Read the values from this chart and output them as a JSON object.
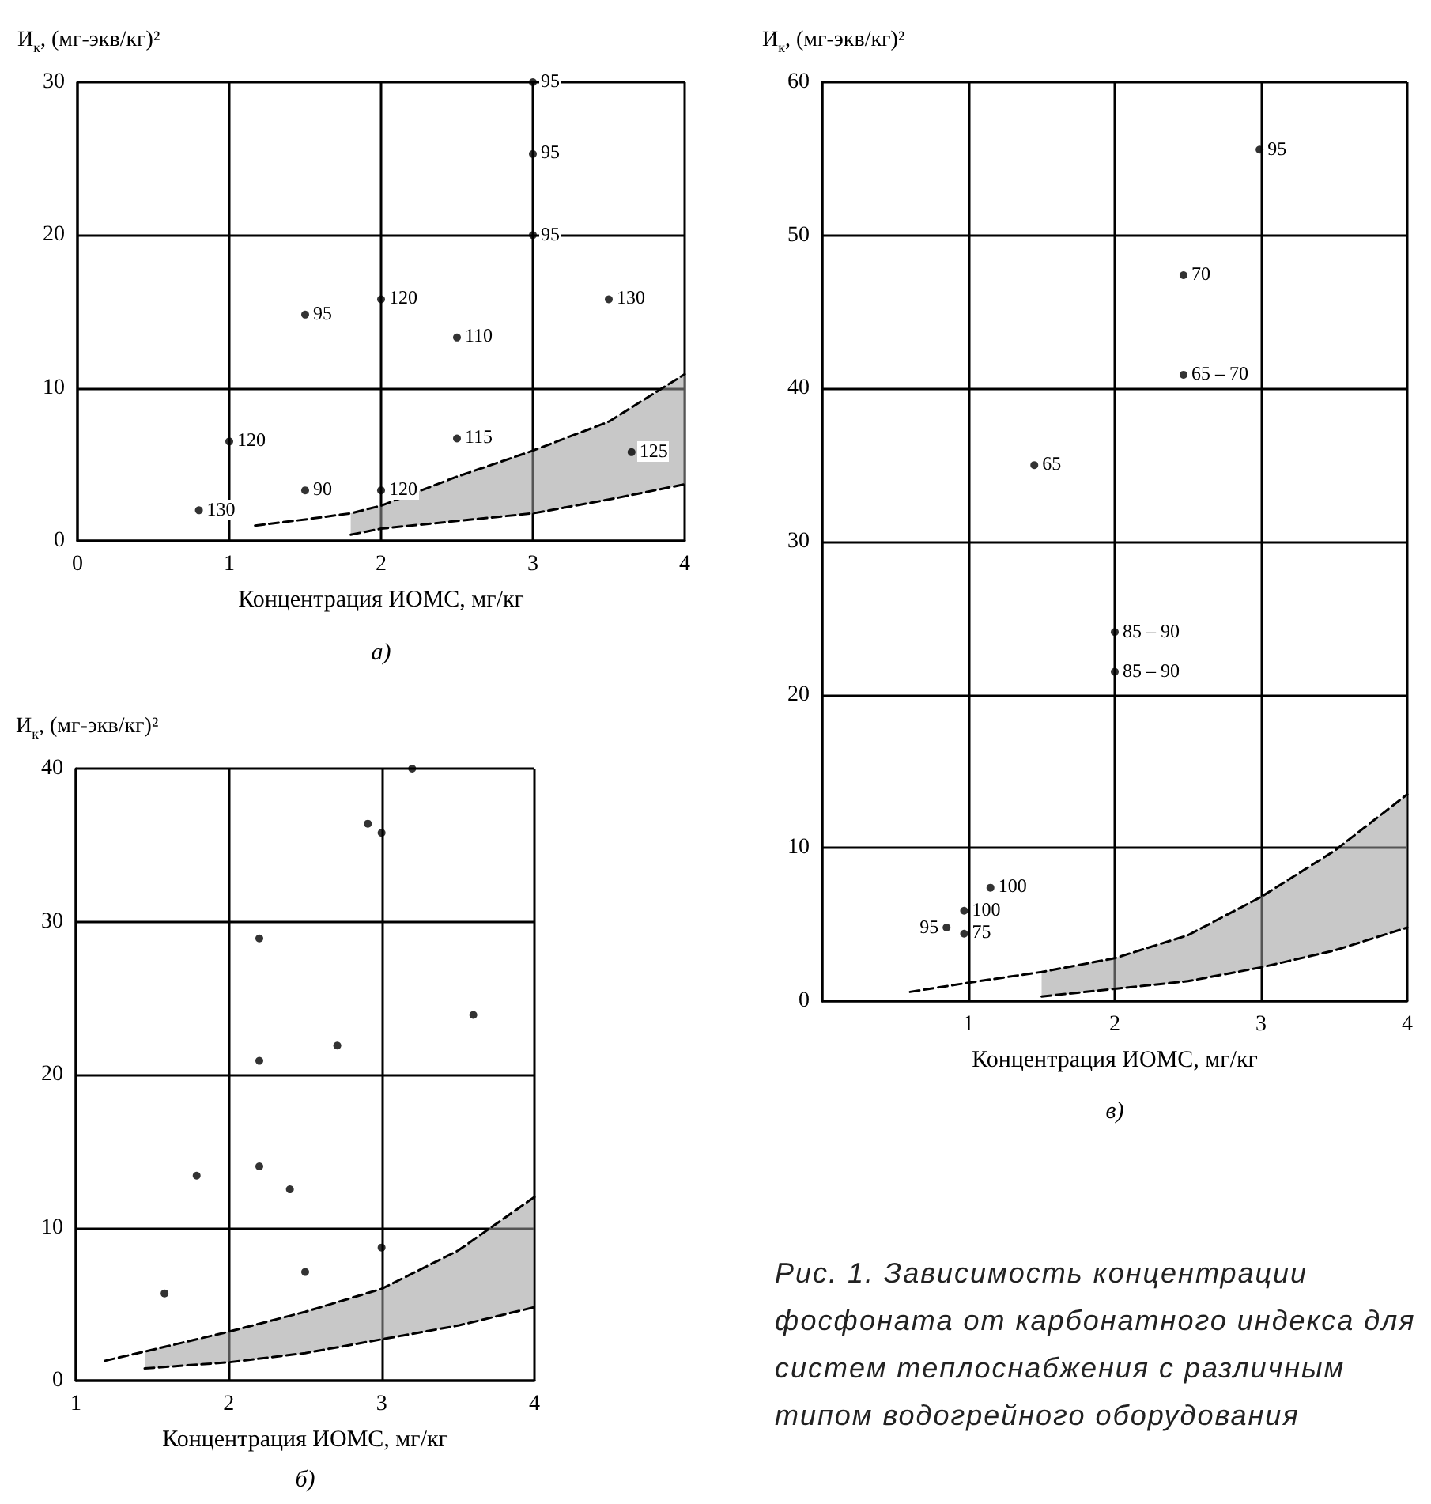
{
  "chart_data": [
    {
      "type": "scatter",
      "ylabel": "И$_{к}$, (мг-экв/кг)²",
      "xlabel": "Концентрация ИОМС, мг/кг",
      "annotations": [
        "а)",
        {
          "text": "130",
          "x": 0.8,
          "y": 2
        },
        {
          "text": "120",
          "x": 1,
          "y": 6.5
        },
        {
          "text": "90",
          "x": 1.5,
          "y": 3.3
        },
        {
          "text": "95",
          "x": 1.5,
          "y": 14.8
        },
        {
          "text": "120",
          "x": 2,
          "y": 3.3
        },
        {
          "text": "120",
          "x": 2,
          "y": 15.8
        },
        {
          "text": "110",
          "x": 2.5,
          "y": 13.3
        },
        {
          "text": "115",
          "x": 2.5,
          "y": 6.7
        },
        {
          "text": "95",
          "x": 3,
          "y": 30
        },
        {
          "text": "95",
          "x": 3,
          "y": 25.3
        },
        {
          "text": "95",
          "x": 3,
          "y": 20
        },
        {
          "text": "130",
          "x": 3.5,
          "y": 15.8
        },
        {
          "text": "125",
          "x": 3.65,
          "y": 5.8
        }
      ],
      "xlim": [
        0,
        4
      ],
      "xticks": [
        0,
        1,
        2,
        3,
        4
      ],
      "ylim": [
        0,
        30
      ],
      "yticks": [
        0,
        10,
        20,
        30
      ],
      "grid": true,
      "marker": "circle",
      "series": [
        {
          "color": "#000000",
          "x": [
            0.8,
            1,
            1.5,
            1.5,
            2,
            2,
            2.5,
            2.5,
            3,
            3,
            3,
            3.5,
            3.65
          ],
          "values": [
            2,
            6.5,
            3.3,
            14.8,
            3.3,
            15.8,
            13.3,
            6.7,
            30,
            25.3,
            20,
            15.8,
            5.8
          ]
        },
        {
          "type": "line",
          "color": "#000000",
          "line_style": "dashed",
          "marker": "none",
          "x": [
            1.17,
            1.5,
            1.8,
            2,
            2.5,
            3,
            3.5,
            4
          ],
          "values": [
            1,
            1.4,
            1.8,
            2.3,
            4.2,
            5.9,
            7.8,
            10.9
          ]
        },
        {
          "type": "line",
          "color": "#000000",
          "line_style": "dashed",
          "marker": "none",
          "x": [
            1.8,
            2,
            2.5,
            3,
            3.5,
            4
          ],
          "values": [
            0.4,
            0.8,
            1.3,
            1.8,
            2.7,
            3.7
          ],
          "lower": [
            0.4,
            0.8,
            1.3,
            1.8,
            2.7,
            3.7
          ],
          "upper": [
            1.8,
            2.3,
            4.2,
            5.9,
            7.8,
            10.9
          ]
        }
      ]
    },
    {
      "type": "scatter",
      "ylabel": "И$_{к}$, (мг-экв/кг)²",
      "xlabel": "Концентрация ИОМС, мг/кг",
      "annotations": [
        "б)"
      ],
      "xlim": [
        1,
        4
      ],
      "xticks": [
        1,
        2,
        3,
        4
      ],
      "ylim": [
        0,
        40
      ],
      "yticks": [
        0,
        10,
        20,
        30,
        40
      ],
      "grid": true,
      "marker": "circle",
      "series": [
        {
          "color": "#000000",
          "x": [
            3.2,
            2.91,
            3,
            2.2,
            3.6,
            2.71,
            2.2,
            1.79,
            2.2,
            2.4,
            3,
            2.5,
            1.58
          ],
          "values": [
            40,
            36.4,
            35.8,
            28.9,
            23.9,
            21.9,
            20.9,
            13.4,
            14,
            12.5,
            8.7,
            7.1,
            5.7
          ]
        },
        {
          "type": "line",
          "color": "#000000",
          "line_style": "dashed",
          "marker": "none",
          "x": [
            1.19,
            1.45,
            2,
            2.5,
            3,
            3.5,
            4
          ],
          "values": [
            1.3,
            1.9,
            3.2,
            4.5,
            6,
            8.5,
            12
          ]
        },
        {
          "type": "line",
          "color": "#000000",
          "line_style": "dashed",
          "marker": "none",
          "x": [
            1.45,
            2,
            2.5,
            3,
            3.5,
            4
          ],
          "values": [
            0.8,
            1.2,
            1.8,
            2.7,
            3.6,
            4.8
          ],
          "lower": [
            0.8,
            1.2,
            1.8,
            2.7,
            3.6,
            4.8
          ],
          "upper": [
            1.9,
            3.2,
            4.5,
            6,
            8.5,
            12
          ]
        }
      ]
    },
    {
      "type": "scatter",
      "ylabel": "И$_{к}$, (мг-экв/кг)²",
      "xlabel": "Концентрация ИОМС, мг/кг",
      "annotations": [
        "в)",
        "Рис. 1. Зависимость концентрации фосфоната от карбонатного индекса для систем теплоснабжения с различным типом водогрейного оборудования",
        {
          "text": "95",
          "x": 2.99,
          "y": 55.6
        },
        {
          "text": "70",
          "x": 2.47,
          "y": 47.4
        },
        {
          "text": "65 – 70",
          "x": 2.47,
          "y": 40.9
        },
        {
          "text": "65",
          "x": 1.45,
          "y": 35
        },
        {
          "text": "85 – 90",
          "x": 2,
          "y": 24.1
        },
        {
          "text": "85 – 90",
          "x": 2,
          "y": 21.5
        },
        {
          "text": "100",
          "x": 1.15,
          "y": 7.4
        },
        {
          "text": "100",
          "x": 0.97,
          "y": 5.9
        },
        {
          "text": "75",
          "x": 0.97,
          "y": 4.4
        },
        {
          "text": "95",
          "x": 0.85,
          "y": 4.8
        }
      ],
      "xlim": [
        0,
        4
      ],
      "xticks": [
        {
          "value": 0,
          "label": null
        },
        1,
        2,
        3,
        4
      ],
      "ylim": [
        0,
        60
      ],
      "yticks": [
        0,
        10,
        20,
        30,
        40,
        50,
        60
      ],
      "grid": true,
      "marker": "circle",
      "series": [
        {
          "color": "#000000",
          "x": [
            2.99,
            2.47,
            2.47,
            1.45,
            2,
            2,
            1.15,
            0.97,
            0.97,
            0.85
          ],
          "values": [
            55.6,
            47.4,
            40.9,
            35,
            24.1,
            21.5,
            7.4,
            5.9,
            4.4,
            4.8
          ]
        },
        {
          "type": "line",
          "color": "#000000",
          "line_style": "dashed",
          "marker": "none",
          "x": [
            0.6,
            1,
            1.5,
            2,
            2.5,
            3,
            3.5,
            4
          ],
          "values": [
            0.6,
            1.2,
            1.9,
            2.8,
            4.3,
            6.8,
            9.8,
            13.5
          ]
        },
        {
          "type": "line",
          "color": "#000000",
          "line_style": "dashed",
          "marker": "none",
          "x": [
            1.5,
            2,
            2.5,
            3,
            3.5,
            4
          ],
          "values": [
            0.3,
            0.8,
            1.3,
            2.2,
            3.3,
            4.8
          ],
          "lower": [
            0.3,
            0.8,
            1.3,
            2.2,
            3.3,
            4.8
          ],
          "upper": [
            1.9,
            2.8,
            4.3,
            6.8,
            9.8,
            13.5
          ]
        }
      ]
    }
  ]
}
